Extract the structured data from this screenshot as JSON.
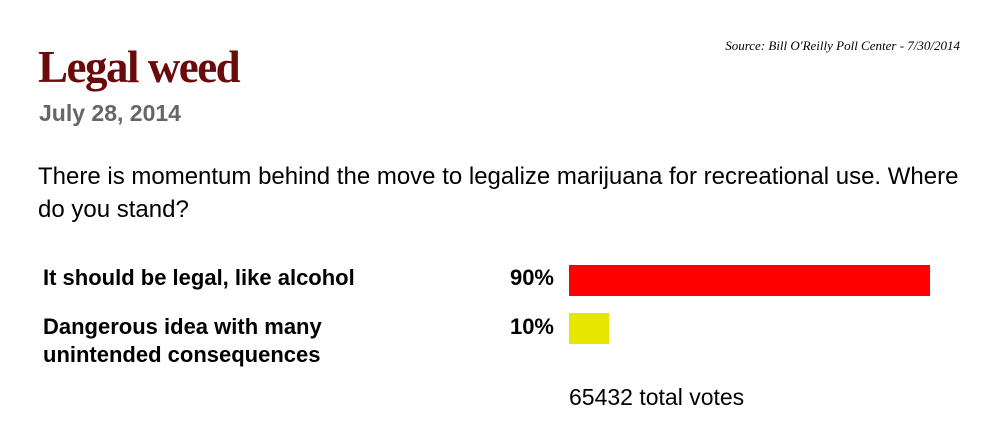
{
  "source": "Source: Bill O'Reilly Poll Center - 7/30/2014",
  "title": "Legal weed",
  "date": "July 28, 2014",
  "question": "There is momentum behind the move to legalize marijuana for recreational use. Where do you stand?",
  "total_votes": "65432 total votes",
  "chart_data": {
    "type": "bar",
    "orientation": "horizontal",
    "categories": [
      "It should be legal, like alcohol",
      "Dangerous idea with many unintended consequences"
    ],
    "values": [
      90,
      10
    ],
    "value_labels": [
      "90%",
      "10%"
    ],
    "unit": "%",
    "colors": [
      "#ff0000",
      "#e6e600"
    ],
    "xlim": [
      0,
      90
    ],
    "grid": false
  }
}
